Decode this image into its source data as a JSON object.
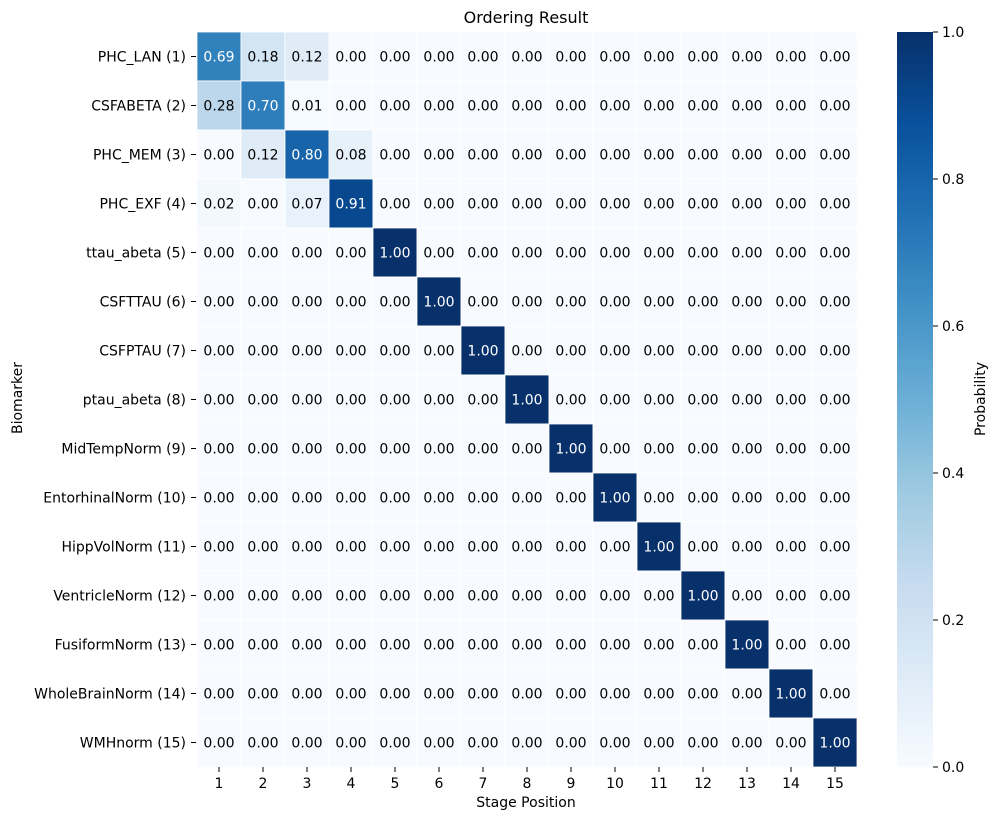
{
  "chart_data": {
    "type": "heatmap",
    "title": "Ordering Result",
    "xlabel": "Stage Position",
    "ylabel": "Biomarker",
    "x_categories": [
      "1",
      "2",
      "3",
      "4",
      "5",
      "6",
      "7",
      "8",
      "9",
      "10",
      "11",
      "12",
      "13",
      "14",
      "15"
    ],
    "y_categories": [
      "PHC_LAN (1)",
      "CSFABETA (2)",
      "PHC_MEM (3)",
      "PHC_EXF (4)",
      "ttau_abeta (5)",
      "CSFTTAU (6)",
      "CSFPTAU (7)",
      "ptau_abeta (8)",
      "MidTempNorm (9)",
      "EntorhinalNorm (10)",
      "HippVolNorm (11)",
      "VentricleNorm (12)",
      "FusiformNorm (13)",
      "WholeBrainNorm (14)",
      "WMHnorm (15)"
    ],
    "values": [
      [
        0.69,
        0.18,
        0.12,
        0.0,
        0.0,
        0.0,
        0.0,
        0.0,
        0.0,
        0.0,
        0.0,
        0.0,
        0.0,
        0.0,
        0.0
      ],
      [
        0.28,
        0.7,
        0.01,
        0.0,
        0.0,
        0.0,
        0.0,
        0.0,
        0.0,
        0.0,
        0.0,
        0.0,
        0.0,
        0.0,
        0.0
      ],
      [
        0.0,
        0.12,
        0.8,
        0.08,
        0.0,
        0.0,
        0.0,
        0.0,
        0.0,
        0.0,
        0.0,
        0.0,
        0.0,
        0.0,
        0.0
      ],
      [
        0.02,
        0.0,
        0.07,
        0.91,
        0.0,
        0.0,
        0.0,
        0.0,
        0.0,
        0.0,
        0.0,
        0.0,
        0.0,
        0.0,
        0.0
      ],
      [
        0.0,
        0.0,
        0.0,
        0.0,
        1.0,
        0.0,
        0.0,
        0.0,
        0.0,
        0.0,
        0.0,
        0.0,
        0.0,
        0.0,
        0.0
      ],
      [
        0.0,
        0.0,
        0.0,
        0.0,
        0.0,
        1.0,
        0.0,
        0.0,
        0.0,
        0.0,
        0.0,
        0.0,
        0.0,
        0.0,
        0.0
      ],
      [
        0.0,
        0.0,
        0.0,
        0.0,
        0.0,
        0.0,
        1.0,
        0.0,
        0.0,
        0.0,
        0.0,
        0.0,
        0.0,
        0.0,
        0.0
      ],
      [
        0.0,
        0.0,
        0.0,
        0.0,
        0.0,
        0.0,
        0.0,
        1.0,
        0.0,
        0.0,
        0.0,
        0.0,
        0.0,
        0.0,
        0.0
      ],
      [
        0.0,
        0.0,
        0.0,
        0.0,
        0.0,
        0.0,
        0.0,
        0.0,
        1.0,
        0.0,
        0.0,
        0.0,
        0.0,
        0.0,
        0.0
      ],
      [
        0.0,
        0.0,
        0.0,
        0.0,
        0.0,
        0.0,
        0.0,
        0.0,
        0.0,
        1.0,
        0.0,
        0.0,
        0.0,
        0.0,
        0.0
      ],
      [
        0.0,
        0.0,
        0.0,
        0.0,
        0.0,
        0.0,
        0.0,
        0.0,
        0.0,
        0.0,
        1.0,
        0.0,
        0.0,
        0.0,
        0.0
      ],
      [
        0.0,
        0.0,
        0.0,
        0.0,
        0.0,
        0.0,
        0.0,
        0.0,
        0.0,
        0.0,
        0.0,
        1.0,
        0.0,
        0.0,
        0.0
      ],
      [
        0.0,
        0.0,
        0.0,
        0.0,
        0.0,
        0.0,
        0.0,
        0.0,
        0.0,
        0.0,
        0.0,
        0.0,
        1.0,
        0.0,
        0.0
      ],
      [
        0.0,
        0.0,
        0.0,
        0.0,
        0.0,
        0.0,
        0.0,
        0.0,
        0.0,
        0.0,
        0.0,
        0.0,
        0.0,
        1.0,
        0.0
      ],
      [
        0.0,
        0.0,
        0.0,
        0.0,
        0.0,
        0.0,
        0.0,
        0.0,
        0.0,
        0.0,
        0.0,
        0.0,
        0.0,
        0.0,
        1.0
      ]
    ],
    "annotations": "values shown with 2 decimals",
    "colormap": "Blues",
    "colorbar": {
      "label": "Probability",
      "range": [
        0,
        1
      ],
      "ticks": [
        "0.0",
        "0.2",
        "0.4",
        "0.6",
        "0.8",
        "1.0"
      ]
    },
    "grid": "white cell separators"
  }
}
